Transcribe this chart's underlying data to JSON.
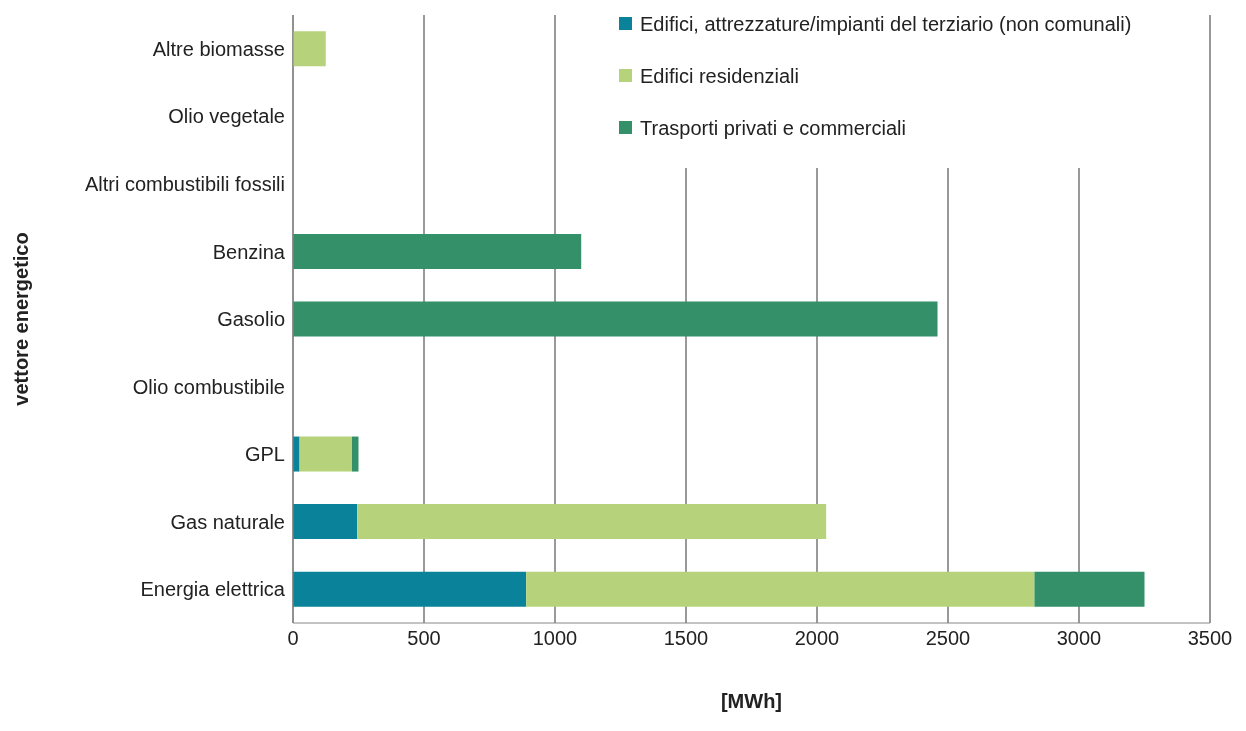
{
  "chart_data": {
    "type": "bar",
    "orientation": "horizontal",
    "stacked": true,
    "xlabel": "[MWh]",
    "ylabel": "vettore energetico",
    "categories": [
      "Altre biomasse",
      "Olio vegetale",
      "Altri combustibili fossili",
      "Benzina",
      "Gasolio",
      "Olio combustibile",
      "GPL",
      "Gas naturale",
      "Energia elettrica"
    ],
    "series": [
      {
        "name": "Edifici, attrezzature/impianti del terziario (non comunali)",
        "color": "#0a8299",
        "values": [
          0,
          null,
          0,
          0,
          null,
          null,
          25,
          245,
          890
        ]
      },
      {
        "name": "Edifici residenziali",
        "color": "#b6d37b",
        "values": [
          125,
          0,
          0,
          0,
          0,
          0,
          200,
          1790,
          1940
        ]
      },
      {
        "name": "Trasporti privati e commerciali",
        "color": "#339068",
        "values": [
          0,
          0,
          0,
          1100,
          2460,
          0,
          25,
          0,
          420
        ]
      }
    ],
    "xlim": [
      0,
      3500
    ],
    "xticks": [
      0,
      500,
      1000,
      1500,
      2000,
      2500,
      3000,
      3500
    ],
    "grid": "x",
    "legend": "top right"
  }
}
